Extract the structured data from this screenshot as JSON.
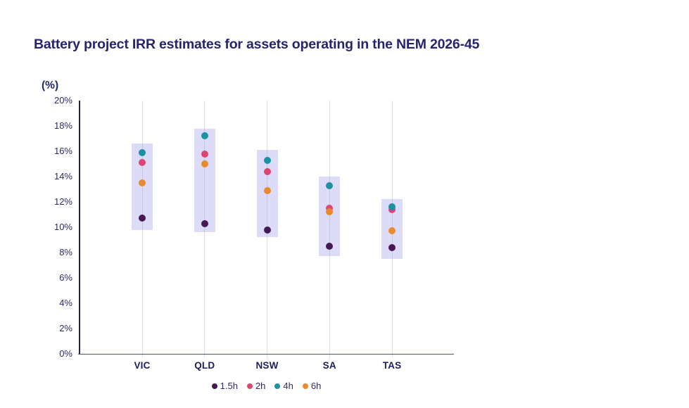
{
  "page": {
    "background": "#ffffff"
  },
  "chart_data": {
    "type": "scatter",
    "title": "Battery project IRR estimates for assets operating in the NEM 2026-45",
    "unit_label": "(%)",
    "categories": [
      "VIC",
      "QLD",
      "NSW",
      "SA",
      "TAS"
    ],
    "series": [
      {
        "name": "1.5h",
        "color": "#451a52",
        "values": [
          10.7,
          10.3,
          9.8,
          8.5,
          8.4
        ]
      },
      {
        "name": "2h",
        "color": "#e04472",
        "values": [
          15.1,
          15.8,
          14.4,
          11.5,
          11.4
        ]
      },
      {
        "name": "4h",
        "color": "#1b92a2",
        "values": [
          15.9,
          17.2,
          15.3,
          13.3,
          11.6
        ]
      },
      {
        "name": "6h",
        "color": "#e88a2e",
        "values": [
          13.5,
          15.0,
          12.9,
          11.2,
          9.7
        ]
      }
    ],
    "range_bands": {
      "color": "#dcdbf8",
      "by_category": [
        {
          "category": "VIC",
          "min": 9.8,
          "max": 16.6
        },
        {
          "category": "QLD",
          "min": 9.6,
          "max": 17.8
        },
        {
          "category": "NSW",
          "min": 9.2,
          "max": 16.1
        },
        {
          "category": "SA",
          "min": 7.7,
          "max": 14.0
        },
        {
          "category": "TAS",
          "min": 7.5,
          "max": 12.2
        }
      ]
    },
    "y_axis": {
      "min": 0,
      "max": 20,
      "tick_step": 2,
      "tick_labels": [
        "0%",
        "2%",
        "4%",
        "6%",
        "8%",
        "10%",
        "12%",
        "14%",
        "16%",
        "18%",
        "20%"
      ]
    },
    "legend": {
      "position": "bottom",
      "items": [
        "1.5h",
        "2h",
        "4h",
        "6h"
      ]
    },
    "grid": "vertical-per-category",
    "ylim": [
      0,
      20
    ]
  },
  "colors": {
    "title": "#26256b",
    "axis_labels": "#2b2a6e",
    "category_labels": "#1c1c5e",
    "y_axis_line": "#23233f",
    "x_axis_line": "#4c4ca0",
    "band": "#dcdbf8"
  }
}
